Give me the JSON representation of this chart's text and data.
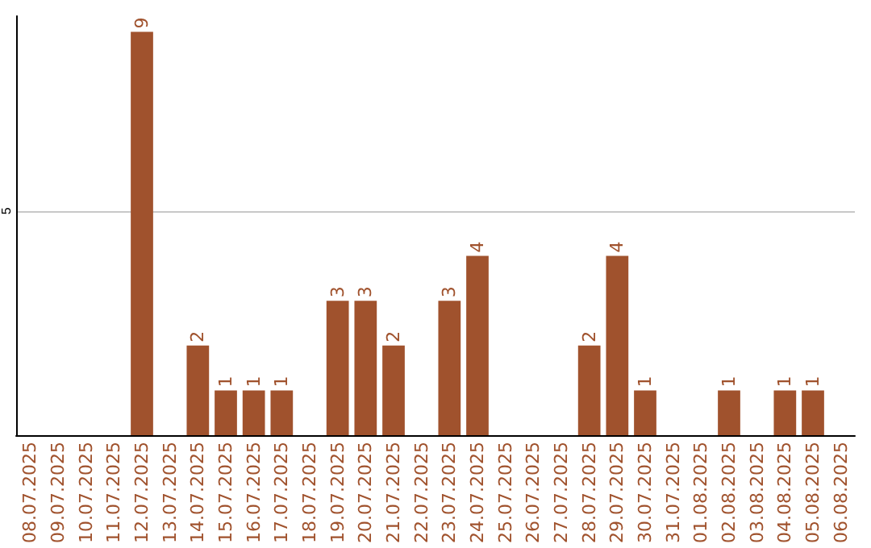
{
  "chart_data": {
    "type": "bar",
    "categories": [
      "08.07.2025",
      "09.07.2025",
      "10.07.2025",
      "11.07.2025",
      "12.07.2025",
      "13.07.2025",
      "14.07.2025",
      "15.07.2025",
      "16.07.2025",
      "17.07.2025",
      "18.07.2025",
      "19.07.2025",
      "20.07.2025",
      "21.07.2025",
      "22.07.2025",
      "23.07.2025",
      "24.07.2025",
      "25.07.2025",
      "26.07.2025",
      "27.07.2025",
      "28.07.2025",
      "29.07.2025",
      "30.07.2025",
      "31.07.2025",
      "01.08.2025",
      "02.08.2025",
      "03.08.2025",
      "04.08.2025",
      "05.08.2025",
      "06.08.2025"
    ],
    "values": [
      0,
      0,
      0,
      0,
      9,
      0,
      2,
      1,
      1,
      1,
      0,
      3,
      3,
      2,
      0,
      3,
      4,
      0,
      0,
      0,
      2,
      4,
      1,
      0,
      0,
      1,
      0,
      1,
      1,
      0
    ],
    "value_labels": [
      null,
      null,
      null,
      null,
      "9",
      null,
      "2",
      "1",
      "1",
      "1",
      null,
      "3",
      "3",
      "2",
      null,
      "3",
      "4",
      null,
      null,
      null,
      "2",
      "4",
      "1",
      null,
      null,
      "1",
      null,
      "1",
      "1",
      null
    ],
    "color": "#a0522d",
    "ylim": [
      0,
      9.35
    ],
    "yticks": [
      5
    ],
    "grid": "y"
  }
}
